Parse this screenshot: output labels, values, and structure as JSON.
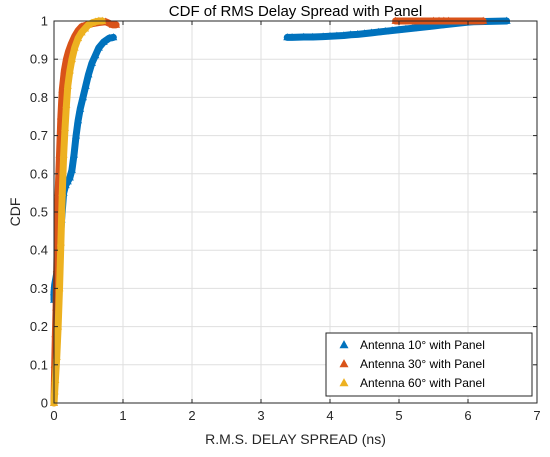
{
  "chart_data": {
    "type": "scatter",
    "title": "CDF of RMS Delay Spread with Panel",
    "xlabel": "R.M.S. DELAY SPREAD (ns)",
    "ylabel": "CDF",
    "xlim": [
      0,
      7
    ],
    "ylim": [
      0,
      1
    ],
    "xticks": [
      "0",
      "1",
      "2",
      "3",
      "4",
      "5",
      "6",
      "7"
    ],
    "yticks": [
      "0",
      "0.1",
      "0.2",
      "0.3",
      "0.4",
      "0.5",
      "0.6",
      "0.7",
      "0.8",
      "0.9",
      "1"
    ],
    "grid": true,
    "legend_position": "bottom-right",
    "marker": "triangle",
    "series": [
      {
        "name": "Antenna 10° with Panel",
        "color": "#0072BD",
        "points": [
          [
            0.0,
            0.27
          ],
          [
            0.0,
            0.29
          ],
          [
            0.01,
            0.31
          ],
          [
            0.03,
            0.33
          ],
          [
            0.05,
            0.35
          ],
          [
            0.08,
            0.4
          ],
          [
            0.11,
            0.48
          ],
          [
            0.14,
            0.55
          ],
          [
            0.17,
            0.57
          ],
          [
            0.2,
            0.58
          ],
          [
            0.23,
            0.59
          ],
          [
            0.26,
            0.61
          ],
          [
            0.29,
            0.65
          ],
          [
            0.32,
            0.7
          ],
          [
            0.35,
            0.74
          ],
          [
            0.38,
            0.77
          ],
          [
            0.42,
            0.8
          ],
          [
            0.46,
            0.83
          ],
          [
            0.5,
            0.86
          ],
          [
            0.55,
            0.89
          ],
          [
            0.6,
            0.91
          ],
          [
            0.65,
            0.93
          ],
          [
            0.72,
            0.945
          ],
          [
            0.8,
            0.955
          ],
          [
            0.86,
            0.957
          ],
          [
            3.38,
            0.957
          ],
          [
            3.45,
            0.957
          ],
          [
            3.62,
            0.958
          ],
          [
            3.75,
            0.958
          ],
          [
            3.9,
            0.959
          ],
          [
            4.0,
            0.96
          ],
          [
            4.1,
            0.961
          ],
          [
            4.2,
            0.962
          ],
          [
            4.3,
            0.964
          ],
          [
            4.4,
            0.965
          ],
          [
            4.5,
            0.967
          ],
          [
            4.6,
            0.969
          ],
          [
            4.7,
            0.971
          ],
          [
            4.8,
            0.973
          ],
          [
            4.9,
            0.975
          ],
          [
            5.0,
            0.977
          ],
          [
            5.1,
            0.979
          ],
          [
            5.2,
            0.981
          ],
          [
            5.3,
            0.983
          ],
          [
            5.4,
            0.985
          ],
          [
            5.5,
            0.987
          ],
          [
            5.6,
            0.989
          ],
          [
            5.7,
            0.991
          ],
          [
            5.8,
            0.993
          ],
          [
            5.9,
            0.995
          ],
          [
            6.0,
            0.997
          ],
          [
            6.08,
            0.998
          ],
          [
            6.56,
            1.0
          ]
        ]
      },
      {
        "name": "Antenna 30° with Panel",
        "color": "#D95319",
        "points": [
          [
            0.0,
            0.0
          ],
          [
            0.01,
            0.1
          ],
          [
            0.02,
            0.18
          ],
          [
            0.03,
            0.25
          ],
          [
            0.04,
            0.35
          ],
          [
            0.05,
            0.45
          ],
          [
            0.06,
            0.55
          ],
          [
            0.08,
            0.65
          ],
          [
            0.1,
            0.75
          ],
          [
            0.12,
            0.82
          ],
          [
            0.15,
            0.87
          ],
          [
            0.18,
            0.9
          ],
          [
            0.21,
            0.92
          ],
          [
            0.25,
            0.94
          ],
          [
            0.3,
            0.96
          ],
          [
            0.35,
            0.975
          ],
          [
            0.4,
            0.985
          ],
          [
            0.48,
            0.99
          ],
          [
            0.55,
            0.993
          ],
          [
            0.65,
            0.996
          ],
          [
            0.75,
            0.998
          ],
          [
            0.85,
            0.99
          ],
          [
            0.9,
            0.99
          ],
          [
            4.95,
            1.0
          ],
          [
            5.5,
            1.0
          ],
          [
            5.58,
            1.0
          ],
          [
            5.65,
            1.0
          ],
          [
            5.72,
            1.0
          ],
          [
            6.22,
            1.0
          ]
        ]
      },
      {
        "name": "Antenna 60° with Panel",
        "color": "#EDB120",
        "points": [
          [
            0.0,
            0.0
          ],
          [
            0.01,
            0.03
          ],
          [
            0.02,
            0.06
          ],
          [
            0.04,
            0.12
          ],
          [
            0.06,
            0.2
          ],
          [
            0.08,
            0.3
          ],
          [
            0.1,
            0.42
          ],
          [
            0.12,
            0.55
          ],
          [
            0.14,
            0.65
          ],
          [
            0.16,
            0.72
          ],
          [
            0.18,
            0.78
          ],
          [
            0.2,
            0.83
          ],
          [
            0.23,
            0.87
          ],
          [
            0.26,
            0.9
          ],
          [
            0.3,
            0.93
          ],
          [
            0.35,
            0.955
          ],
          [
            0.4,
            0.97
          ],
          [
            0.45,
            0.98
          ],
          [
            0.5,
            0.99
          ],
          [
            0.55,
            0.995
          ],
          [
            0.6,
            0.998
          ],
          [
            0.65,
            1.0
          ],
          [
            0.7,
            1.0
          ]
        ]
      }
    ]
  }
}
